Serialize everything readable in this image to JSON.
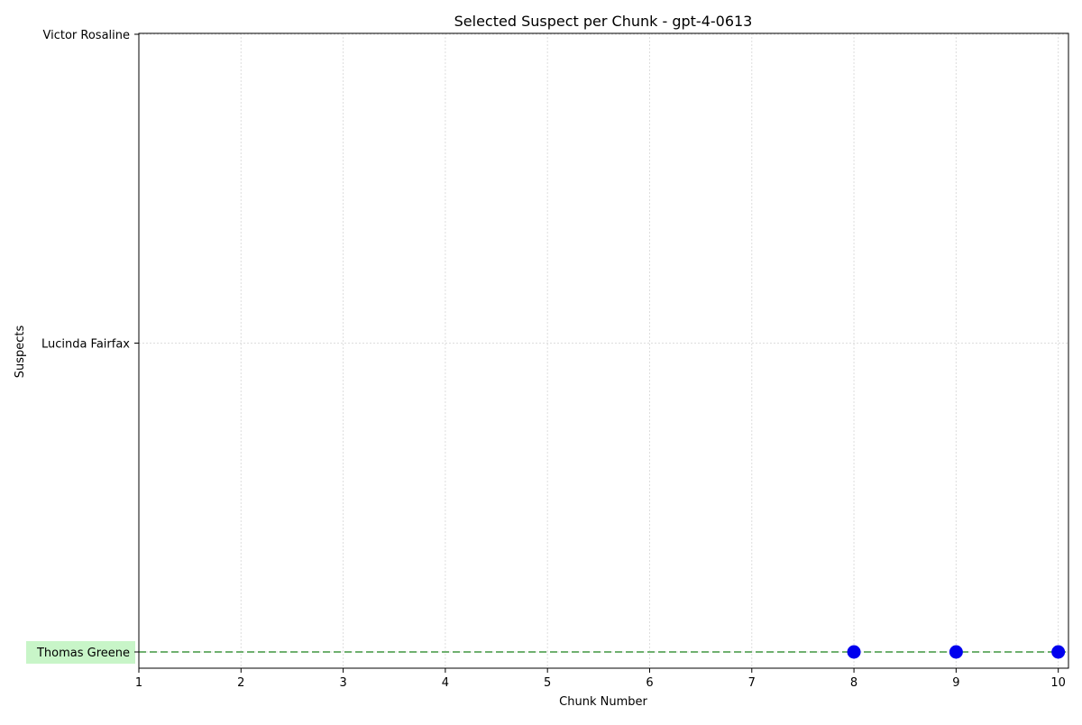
{
  "chart_data": {
    "type": "scatter",
    "title": "Selected Suspect per Chunk - gpt-4-0613",
    "xlabel": "Chunk Number",
    "ylabel": "Suspects",
    "x_ticks": [
      1,
      2,
      3,
      4,
      5,
      6,
      7,
      8,
      9,
      10
    ],
    "xlim": [
      1,
      10.1
    ],
    "y_categories": [
      "Thomas Greene",
      "Lucinda Fairfax",
      "Victor Rosaline"
    ],
    "highlighted_category": "Thomas Greene",
    "reference_line": {
      "y": "Thomas Greene",
      "style": "dashed",
      "color": "#6fb06f"
    },
    "points": [
      {
        "x": 8,
        "y": "Thomas Greene"
      },
      {
        "x": 9,
        "y": "Thomas Greene"
      },
      {
        "x": 10,
        "y": "Thomas Greene"
      }
    ],
    "grid": true,
    "colors": {
      "points": "#0000ee",
      "highlight_bg": "#c8f5c8",
      "grid": "#dddddd"
    }
  }
}
